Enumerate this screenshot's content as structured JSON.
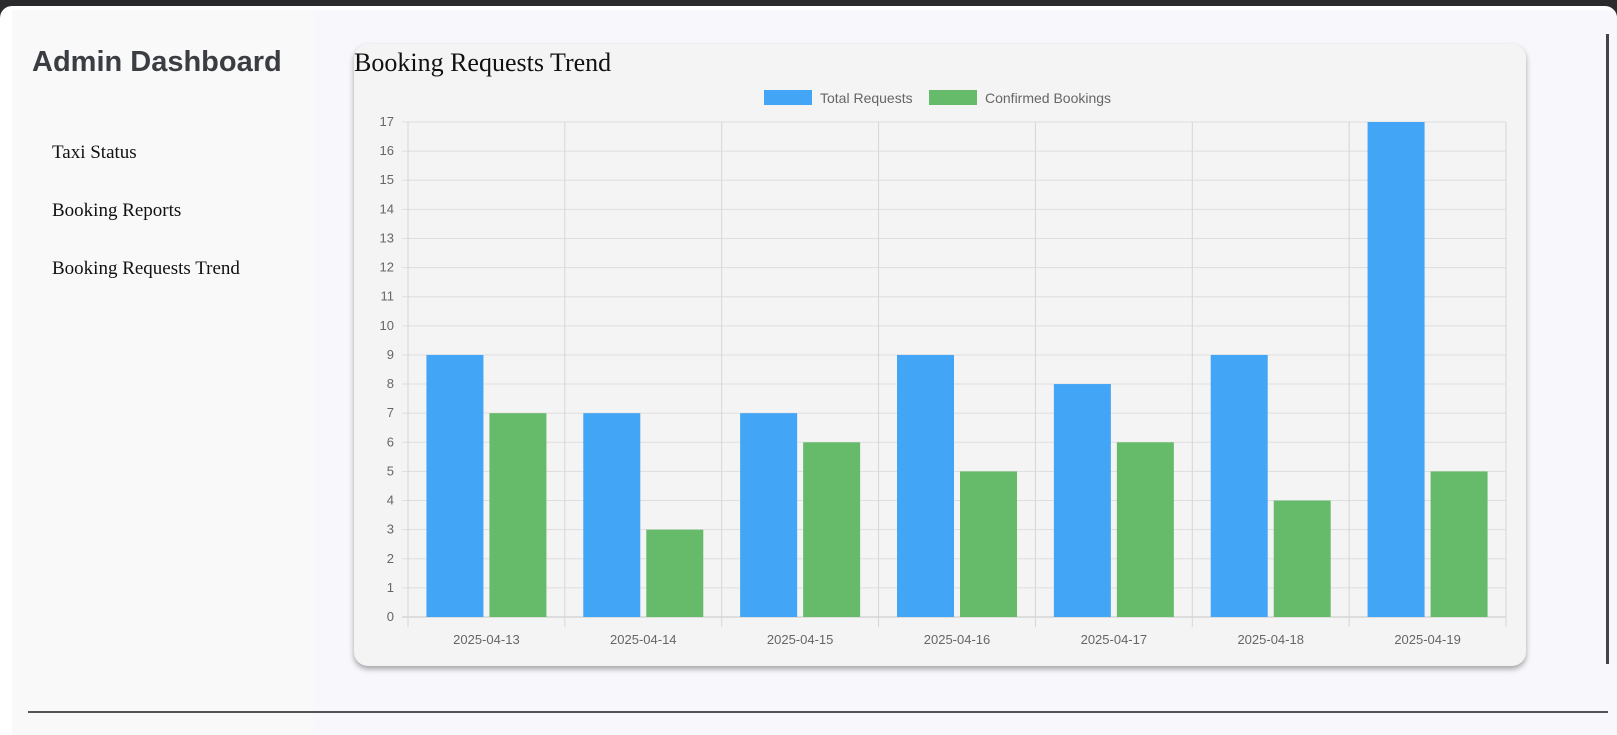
{
  "sidebar": {
    "title": "Admin Dashboard",
    "items": [
      {
        "label": "Taxi Status"
      },
      {
        "label": "Booking Reports"
      },
      {
        "label": "Booking Requests Trend"
      }
    ]
  },
  "main": {
    "card_title": "Booking Requests Trend"
  },
  "chart_data": {
    "type": "bar",
    "categories": [
      "2025-04-13",
      "2025-04-14",
      "2025-04-15",
      "2025-04-16",
      "2025-04-17",
      "2025-04-18",
      "2025-04-19"
    ],
    "series": [
      {
        "name": "Total Requests",
        "values": [
          9,
          7,
          7,
          9,
          8,
          9,
          17
        ],
        "color": "#42a5f5"
      },
      {
        "name": "Confirmed Bookings",
        "values": [
          7,
          3,
          6,
          5,
          6,
          4,
          5
        ],
        "color": "#66bb6a"
      }
    ],
    "ylim": [
      0,
      17
    ],
    "yticks": [
      "0",
      "1",
      "2",
      "3",
      "4",
      "5",
      "6",
      "7",
      "8",
      "9",
      "10",
      "11",
      "12",
      "13",
      "14",
      "15",
      "16",
      "17"
    ],
    "legend_position": "top-center",
    "grid": true
  }
}
